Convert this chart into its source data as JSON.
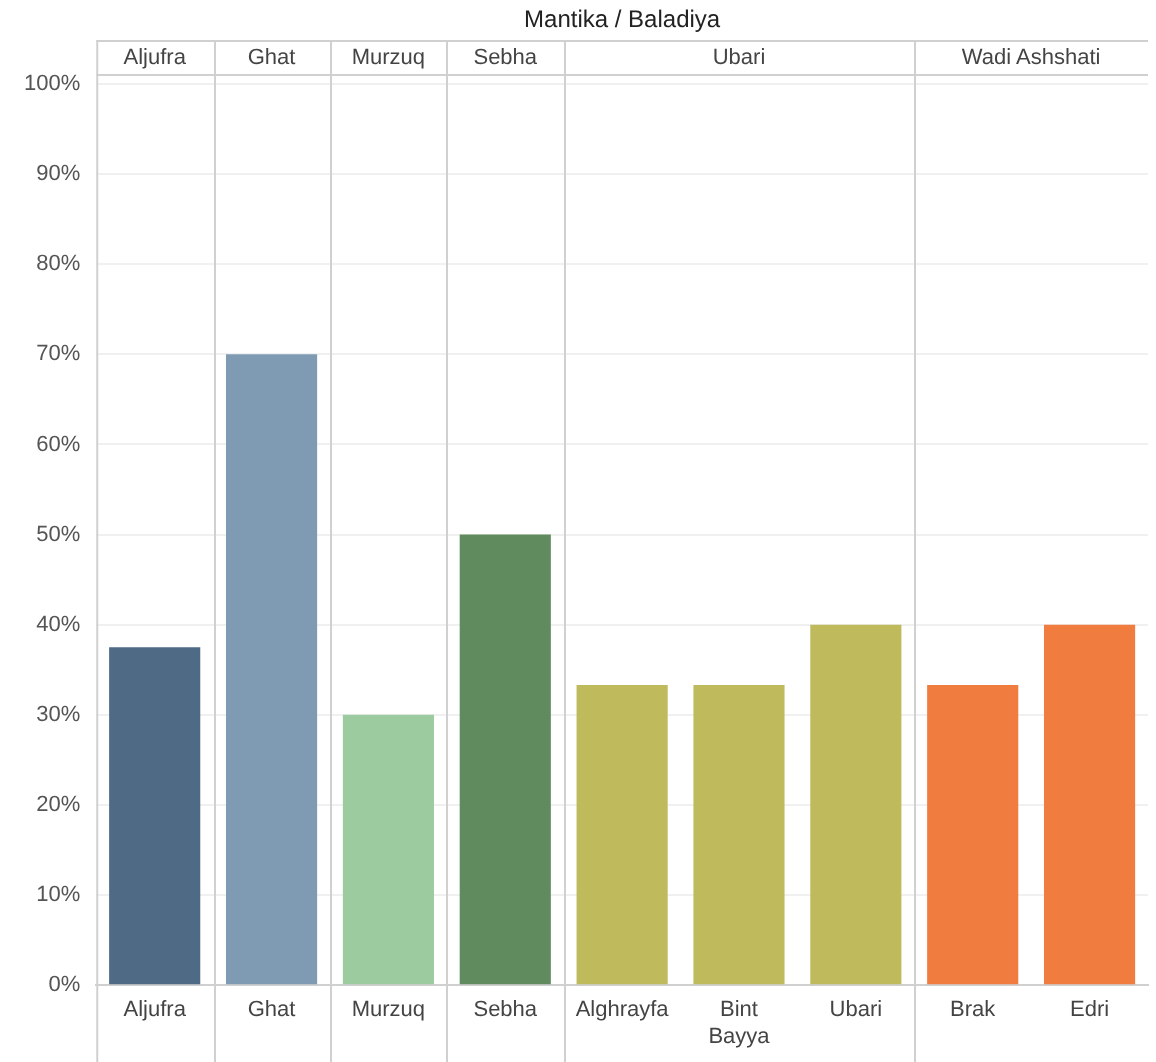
{
  "chart_data": {
    "type": "bar",
    "title": "Mantika / Baladiya",
    "categories": [
      "Aljufra",
      "Ghat",
      "Murzuq",
      "Sebha",
      "Alghrayfa",
      "Bint Bayya",
      "Ubari",
      "Brak",
      "Edri"
    ],
    "values": [
      37.5,
      70,
      30,
      50,
      33.3,
      33.3,
      40,
      33.3,
      40
    ],
    "colors": [
      "#4e6a85",
      "#7f9bb3",
      "#9dcba0",
      "#5f8b5f",
      "#bfbb5c",
      "#bfbb5c",
      "#bfbb5c",
      "#f07c40",
      "#f07c40"
    ],
    "ylim": [
      0,
      100
    ],
    "yticks": [
      {
        "value": 0,
        "label": "0%"
      },
      {
        "value": 10,
        "label": "10%"
      },
      {
        "value": 20,
        "label": "20%"
      },
      {
        "value": 30,
        "label": "30%"
      },
      {
        "value": 40,
        "label": "40%"
      },
      {
        "value": 50,
        "label": "50%"
      },
      {
        "value": 60,
        "label": "60%"
      },
      {
        "value": 70,
        "label": "70%"
      },
      {
        "value": 80,
        "label": "80%"
      },
      {
        "value": 90,
        "label": "90%"
      },
      {
        "value": 100,
        "label": "100%"
      }
    ],
    "annotations": [
      "Aljufra",
      "Ghat",
      "Murzuq",
      "Sebha",
      "Ubari",
      "Wadi Ashshati"
    ],
    "grid": "y"
  }
}
